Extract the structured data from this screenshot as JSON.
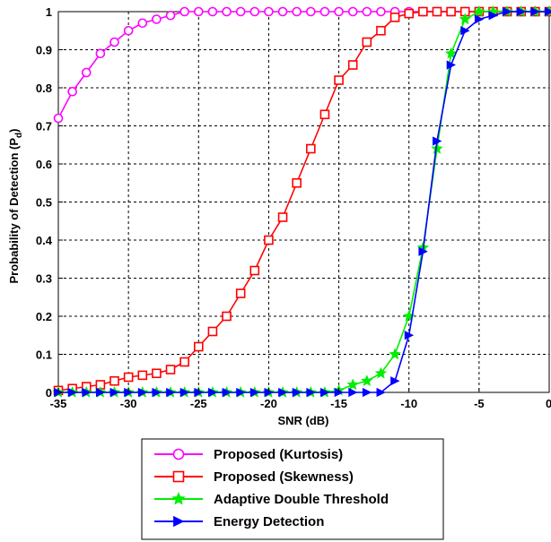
{
  "chart_data": {
    "type": "line",
    "xlabel": "SNR (dB)",
    "ylabel": "Probability of Detection (P",
    "ylabel_sub": "d",
    "ylabel_close": ")",
    "xlim": [
      -35,
      0
    ],
    "ylim": [
      0,
      1
    ],
    "xticks": [
      -35,
      -30,
      -25,
      -20,
      -15,
      -10,
      -5,
      0
    ],
    "yticks": [
      0,
      0.1,
      0.2,
      0.3,
      0.4,
      0.5,
      0.6,
      0.7,
      0.8,
      0.9,
      1
    ],
    "xtick_labels": [
      "-35",
      "-30",
      "-25",
      "-20",
      "-15",
      "-10",
      "-5",
      "0"
    ],
    "ytick_labels": [
      "0",
      "0.1",
      "0.2",
      "0.3",
      "0.4",
      "0.5",
      "0.6",
      "0.7",
      "0.8",
      "0.9",
      "1"
    ],
    "grid": true,
    "legend_position": "bottom-center outside",
    "x": [
      -35,
      -34,
      -33,
      -32,
      -31,
      -30,
      -29,
      -28,
      -27,
      -26,
      -25,
      -24,
      -23,
      -22,
      -21,
      -20,
      -19,
      -18,
      -17,
      -16,
      -15,
      -14,
      -13,
      -12,
      -11,
      -10,
      -9,
      -8,
      -7,
      -6,
      -5,
      -4,
      -3,
      -2,
      -1,
      0
    ],
    "series": [
      {
        "name": "Proposed (Kurtosis)",
        "color": "#ff00ff",
        "marker": "circle",
        "values": [
          0.72,
          0.79,
          0.84,
          0.89,
          0.92,
          0.95,
          0.97,
          0.98,
          0.99,
          1.0,
          1.0,
          1.0,
          1.0,
          1.0,
          1.0,
          1.0,
          1.0,
          1.0,
          1.0,
          1.0,
          1.0,
          1.0,
          1.0,
          1.0,
          1.0,
          1.0,
          1.0,
          1.0,
          1.0,
          1.0,
          1.0,
          1.0,
          1.0,
          1.0,
          1.0,
          1.0
        ]
      },
      {
        "name": "Proposed (Skewness)",
        "color": "#ff0000",
        "marker": "square",
        "values": [
          0.005,
          0.01,
          0.015,
          0.02,
          0.03,
          0.04,
          0.045,
          0.05,
          0.06,
          0.08,
          0.12,
          0.16,
          0.2,
          0.26,
          0.32,
          0.4,
          0.46,
          0.55,
          0.64,
          0.73,
          0.82,
          0.86,
          0.92,
          0.95,
          0.985,
          0.995,
          1.0,
          1.0,
          1.0,
          1.0,
          1.0,
          1.0,
          1.0,
          1.0,
          1.0,
          1.0
        ]
      },
      {
        "name": "Adaptive Double Threshold",
        "color": "#00ee00",
        "marker": "star",
        "values": [
          0,
          0,
          0,
          0,
          0,
          0,
          0,
          0,
          0,
          0,
          0,
          0,
          0,
          0,
          0,
          0,
          0,
          0,
          0,
          0,
          0.005,
          0.02,
          0.03,
          0.05,
          0.1,
          0.2,
          0.38,
          0.64,
          0.89,
          0.98,
          1.0,
          1.0,
          1.0,
          1.0,
          1.0,
          1.0
        ]
      },
      {
        "name": "Energy Detection",
        "color": "#0000ff",
        "marker": "triangle-right",
        "values": [
          0,
          0,
          0,
          0,
          0,
          0,
          0,
          0,
          0,
          0,
          0,
          0,
          0,
          0,
          0,
          0,
          0,
          0,
          0,
          0,
          0,
          0,
          0,
          0,
          0.03,
          0.15,
          0.37,
          0.66,
          0.86,
          0.95,
          0.98,
          0.99,
          1.0,
          1.0,
          1.0,
          1.0
        ]
      }
    ]
  }
}
